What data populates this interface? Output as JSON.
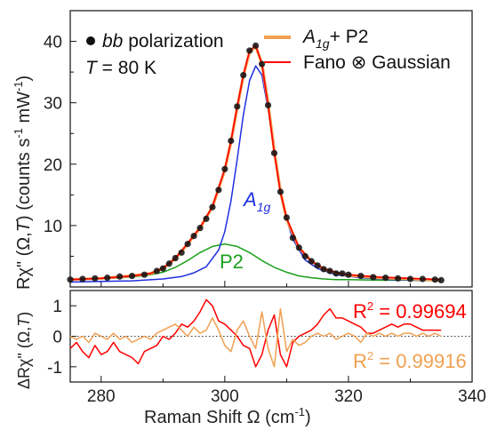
{
  "chart_data": [
    {
      "type": "scatter",
      "panel": "top",
      "xlim": [
        275,
        340
      ],
      "ylim": [
        0,
        45
      ],
      "yticks": [
        10,
        20,
        30,
        40
      ],
      "ylabel": {
        "main": "Rχ\" (Ω,",
        "T": "T",
        "tail": ") (counts s",
        "sup1": "-1",
        "mid": " mW",
        "sup2": "-1",
        "close": ")"
      },
      "annotation_polarization": {
        "prefix": "bb",
        "suffix": " polarization"
      },
      "annotation_temperature": {
        "var": "T",
        "eq": " = 80 K"
      },
      "legend": {
        "placement": "top-right",
        "entries": [
          {
            "base": "A",
            "sub": "1g",
            "rest": "+ P2",
            "color": "#f0a050"
          },
          {
            "text": "Fano ⊗ Gaussian",
            "color": "#ff0000"
          }
        ]
      },
      "curve_labels": {
        "a1g": {
          "base": "A",
          "sub": "1g",
          "color": "#1f2fe0"
        },
        "p2": {
          "text": "P2",
          "color": "#1aa01a"
        }
      },
      "data_points": {
        "name": "bb polarization",
        "x": [
          275,
          277,
          279,
          281,
          283,
          285,
          287,
          289,
          290,
          291,
          292,
          293,
          294,
          295,
          296,
          297,
          298,
          299,
          300,
          301,
          302,
          303,
          304,
          305,
          306,
          307,
          308,
          309,
          310,
          311,
          312,
          313,
          314,
          315,
          316,
          317,
          318,
          319,
          320,
          322,
          324,
          326,
          328,
          330,
          332,
          334,
          335
        ],
        "y": [
          1.2,
          1.3,
          1.4,
          1.5,
          1.7,
          1.8,
          2.0,
          2.6,
          3.0,
          3.8,
          4.7,
          5.6,
          7.0,
          8.3,
          9.6,
          11.1,
          13.0,
          15.8,
          19.2,
          23.8,
          29.4,
          34.5,
          38.5,
          39.3,
          36.3,
          29.6,
          21.8,
          15.5,
          11.3,
          8.0,
          6.4,
          5.0,
          4.2,
          3.5,
          2.9,
          2.6,
          2.2,
          2.2,
          2.0,
          1.8,
          1.6,
          1.5,
          1.4,
          1.3,
          1.3,
          1.2,
          1.1
        ]
      },
      "series": [
        {
          "name": "A1g + P2",
          "color": "#f0a050",
          "x": [
            275,
            280,
            285,
            288,
            290,
            292,
            294,
            296,
            298,
            300,
            301,
            302,
            303,
            304,
            305,
            306,
            307,
            308,
            309,
            310,
            312,
            314,
            316,
            318,
            320,
            325,
            330,
            335
          ],
          "y": [
            1.2,
            1.4,
            1.8,
            2.2,
            3.0,
            4.6,
            7.0,
            9.6,
            13.0,
            19.0,
            23.6,
            29.2,
            34.4,
            38.2,
            39.2,
            36.4,
            30.0,
            22.2,
            15.6,
            11.0,
            6.4,
            4.2,
            2.9,
            2.3,
            1.9,
            1.5,
            1.3,
            1.1
          ]
        },
        {
          "name": "Fano ⊗ Gaussian",
          "color": "#ff0000",
          "x": [
            275,
            280,
            285,
            288,
            290,
            292,
            294,
            296,
            298,
            300,
            301,
            302,
            303,
            304,
            305,
            306,
            307,
            308,
            309,
            310,
            312,
            314,
            316,
            318,
            320,
            325,
            330,
            335
          ],
          "y": [
            1.2,
            1.4,
            1.8,
            2.2,
            3.1,
            4.7,
            7.1,
            9.7,
            13.1,
            19.2,
            23.8,
            29.4,
            34.5,
            38.5,
            39.3,
            36.3,
            29.6,
            21.8,
            15.4,
            11.2,
            6.4,
            4.2,
            3.0,
            2.4,
            2.0,
            1.6,
            1.4,
            1.2
          ]
        },
        {
          "name": "A1g",
          "color": "#1f2fe0",
          "x": [
            275,
            280,
            285,
            290,
            293,
            295,
            297,
            299,
            300,
            301,
            302,
            303,
            304,
            305,
            306,
            307,
            308,
            309,
            310,
            311,
            313,
            315,
            318,
            322,
            327,
            335
          ],
          "y": [
            0.8,
            0.9,
            1.0,
            1.3,
            1.7,
            2.3,
            3.3,
            6.0,
            9.0,
            14.0,
            20.8,
            28.0,
            33.6,
            36.0,
            34.5,
            29.0,
            22.0,
            15.6,
            11.0,
            7.8,
            4.4,
            3.0,
            2.0,
            1.5,
            1.2,
            1.0
          ]
        },
        {
          "name": "P2",
          "color": "#1aa01a",
          "x": [
            275,
            280,
            285,
            288,
            290,
            292,
            294,
            296,
            298,
            300,
            302,
            304,
            306,
            308,
            310,
            312,
            314,
            316,
            318,
            320,
            325,
            330,
            335
          ],
          "y": [
            1.2,
            1.3,
            1.6,
            2.0,
            2.4,
            3.2,
            4.3,
            5.6,
            6.6,
            7.0,
            6.6,
            5.6,
            4.3,
            3.2,
            2.4,
            1.8,
            1.5,
            1.3,
            1.2,
            1.2,
            1.1,
            1.1,
            1.0
          ]
        }
      ]
    },
    {
      "type": "line",
      "panel": "bottom",
      "xlabel": "Raman Shift Ω (cm",
      "xlabel_sup": "-1",
      "xlabel_close": ")",
      "xlim": [
        275,
        340
      ],
      "xticks": [
        280,
        300,
        320,
        340
      ],
      "ylim": [
        -1.5,
        1.5
      ],
      "yticks": [
        -1,
        0,
        1
      ],
      "ylabel": "ΔRχ\" (Ω,",
      "ylabel_T": "T",
      "ylabel_close": ")",
      "zero_line": true,
      "r2_annotations": [
        {
          "prefix": "R",
          "sup": "2",
          "value": " = 0.99694",
          "color": "#ff0000"
        },
        {
          "prefix": "R",
          "sup": "2",
          "value": " = 0.99916",
          "color": "#f0a050"
        }
      ],
      "series": [
        {
          "name": "Fano ⊗ Gaussian residual",
          "color": "#ff0000",
          "x": [
            275,
            276,
            277,
            278,
            279,
            280,
            281,
            282,
            283,
            284,
            285,
            286,
            287,
            288,
            289,
            290,
            291,
            292,
            293,
            294,
            295,
            296,
            297,
            298,
            299,
            300,
            301,
            302,
            303,
            304,
            305,
            306,
            307,
            308,
            309,
            310,
            311,
            312,
            313,
            314,
            315,
            316,
            317,
            318,
            319,
            320,
            321,
            322,
            323,
            324,
            325,
            326,
            327,
            328,
            329,
            330,
            331,
            332,
            333,
            334,
            335
          ],
          "y": [
            -0.4,
            -0.2,
            -0.5,
            -0.7,
            -0.3,
            -0.6,
            -0.5,
            -0.2,
            -0.5,
            -0.6,
            -0.7,
            -0.9,
            -0.5,
            -0.4,
            -0.3,
            0.0,
            -0.1,
            0.1,
            0.4,
            0.3,
            0.5,
            0.8,
            1.2,
            1.0,
            0.5,
            0.4,
            0.2,
            0.0,
            -0.3,
            -0.4,
            -1.0,
            -0.6,
            0.2,
            0.7,
            -0.6,
            -1.0,
            -0.2,
            0.0,
            0.1,
            0.2,
            0.4,
            0.7,
            0.9,
            0.6,
            0.6,
            0.5,
            0.4,
            0.3,
            0.1,
            0.1,
            0.2,
            0.3,
            0.4,
            0.3,
            0.4,
            0.4,
            0.3,
            0.2,
            0.2,
            0.2,
            0.2
          ]
        },
        {
          "name": "A1g + P2 residual",
          "color": "#f0a050",
          "x": [
            275,
            276,
            277,
            278,
            279,
            280,
            281,
            282,
            283,
            284,
            285,
            286,
            287,
            288,
            289,
            290,
            291,
            292,
            293,
            294,
            295,
            296,
            297,
            298,
            299,
            300,
            301,
            302,
            303,
            304,
            305,
            306,
            307,
            308,
            309,
            310,
            311,
            312,
            313,
            314,
            315,
            316,
            317,
            318,
            319,
            320,
            321,
            322,
            323,
            324,
            325,
            326,
            327,
            328,
            329,
            330,
            331,
            332,
            333,
            334,
            335
          ],
          "y": [
            0.0,
            -0.1,
            0.0,
            -0.2,
            0.1,
            0.0,
            -0.1,
            0.1,
            -0.1,
            0.0,
            -0.2,
            -0.1,
            0.0,
            -0.1,
            0.1,
            0.2,
            0.3,
            0.4,
            0.2,
            0.0,
            0.3,
            0.1,
            0.2,
            0.6,
            0.2,
            -0.3,
            -0.5,
            0.2,
            0.5,
            0.0,
            -0.4,
            0.8,
            -0.4,
            -1.0,
            0.9,
            -0.5,
            -0.1,
            -0.3,
            -0.2,
            0.0,
            0.1,
            0.0,
            0.1,
            -0.1,
            0.0,
            0.1,
            0.0,
            -0.2,
            0.1,
            0.0,
            0.1,
            0.0,
            0.1,
            0.0,
            0.1,
            0.1,
            0.0,
            0.1,
            0.0,
            0.1,
            0.0
          ]
        }
      ]
    }
  ]
}
